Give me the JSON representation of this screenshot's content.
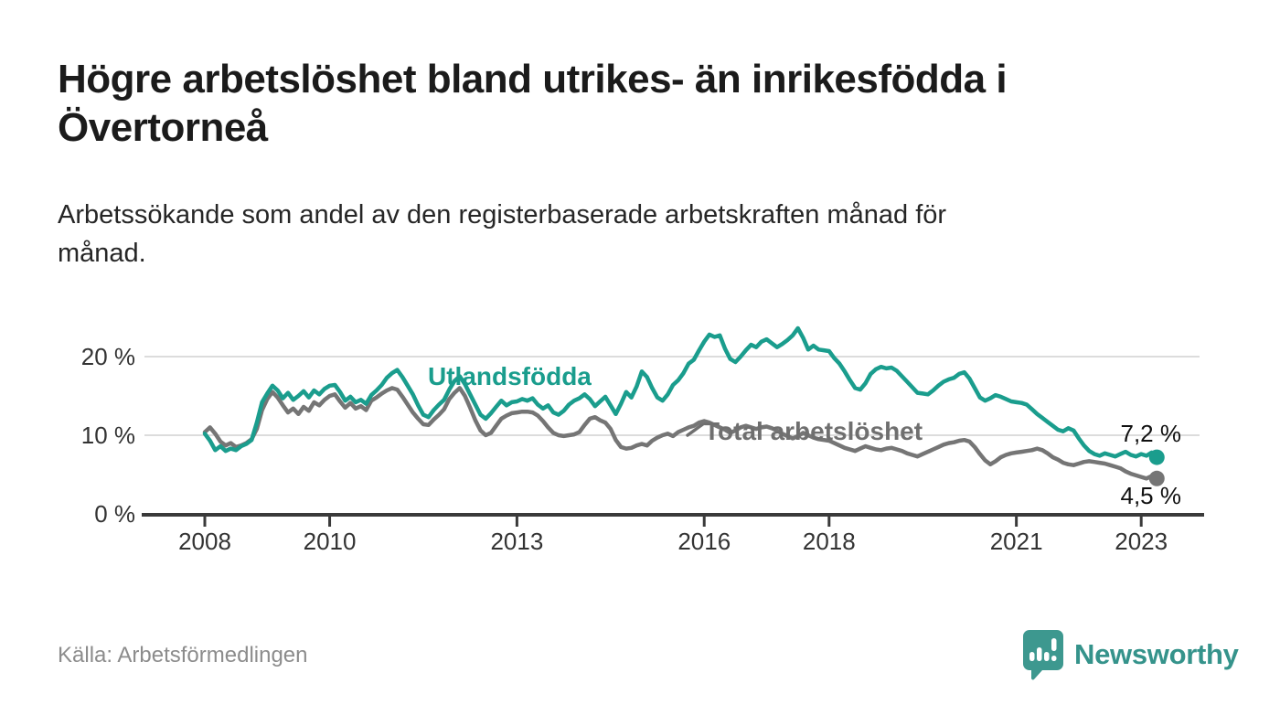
{
  "header": {
    "title_line1": "Högre arbetslöshet bland utrikes- än inrikesfödda i",
    "title_line2": "Övertorneå",
    "subtitle_line1": "Arbetssökande som andel av den registerbaserade arbetskraften månad för",
    "subtitle_line2": "månad."
  },
  "footer": {
    "source": "Källa: Arbetsförmedlingen",
    "brand": "Newsworthy"
  },
  "colors": {
    "accent_teal": "#1A9D8D",
    "line_gray": "#757575",
    "label_gray": "#6F6F6F",
    "axis": "#3A3A3A",
    "gridline": "#DCDCDC",
    "tick_text": "#333333",
    "title_text": "#1B1B1B",
    "source_text": "#8C8C8C",
    "logo_teal": "#3D988F"
  },
  "chart_data": {
    "type": "line",
    "title": "Högre arbetslöshet bland utrikes- än inrikesfödda i Övertorneå",
    "subtitle": "Arbetssökande som andel av den registerbaserade arbetskraften månad för månad.",
    "frequency": "monthly",
    "x_start": "2008-01",
    "x_end": "2023-04",
    "ylim": [
      0,
      25
    ],
    "grid": "horizontal-only",
    "yticks": [
      {
        "value": 0,
        "label": "0 %"
      },
      {
        "value": 10,
        "label": "10 %"
      },
      {
        "value": 20,
        "label": "20 %"
      }
    ],
    "xticks": [
      {
        "month_index": 0,
        "label": "2008"
      },
      {
        "month_index": 24,
        "label": "2010"
      },
      {
        "month_index": 60,
        "label": "2013"
      },
      {
        "month_index": 96,
        "label": "2016"
      },
      {
        "month_index": 120,
        "label": "2018"
      },
      {
        "month_index": 156,
        "label": "2021"
      },
      {
        "month_index": 180,
        "label": "2023"
      }
    ],
    "series": [
      {
        "name": "Utlandsfödda",
        "color": "#1A9D8D",
        "end_label": "7,2 %",
        "end_value": 7.2,
        "values": [
          10.2,
          9.3,
          8.1,
          8.6,
          8.0,
          8.3,
          8.1,
          8.6,
          8.9,
          9.4,
          11.6,
          14.2,
          15.3,
          16.3,
          15.7,
          14.7,
          15.4,
          14.5,
          15.0,
          15.6,
          14.8,
          15.7,
          15.2,
          15.9,
          16.3,
          16.4,
          15.5,
          14.4,
          14.9,
          14.2,
          14.5,
          14.0,
          15.1,
          15.7,
          16.4,
          17.3,
          17.9,
          18.3,
          17.4,
          16.3,
          15.2,
          13.8,
          12.6,
          12.3,
          13.2,
          13.9,
          14.5,
          15.8,
          16.9,
          17.5,
          16.5,
          15.2,
          13.9,
          12.6,
          12.1,
          12.8,
          13.6,
          14.4,
          13.8,
          14.2,
          14.3,
          14.6,
          14.4,
          14.7,
          13.9,
          13.4,
          13.8,
          12.9,
          12.6,
          13.1,
          13.9,
          14.4,
          14.7,
          15.2,
          14.6,
          13.7,
          14.3,
          14.9,
          13.8,
          12.7,
          14.0,
          15.5,
          14.8,
          16.2,
          18.1,
          17.4,
          16.0,
          14.8,
          14.4,
          15.2,
          16.4,
          17.0,
          17.9,
          19.1,
          19.6,
          20.8,
          21.9,
          22.8,
          22.5,
          22.7,
          21.0,
          19.7,
          19.3,
          20.0,
          20.8,
          21.5,
          21.2,
          21.9,
          22.2,
          21.7,
          21.2,
          21.6,
          22.1,
          22.7,
          23.6,
          22.4,
          20.9,
          21.4,
          20.9,
          20.8,
          20.7,
          19.8,
          19.1,
          18.1,
          17.0,
          16.0,
          15.8,
          16.6,
          17.8,
          18.4,
          18.7,
          18.5,
          18.6,
          18.2,
          17.5,
          16.8,
          16.1,
          15.4,
          15.3,
          15.2,
          15.7,
          16.3,
          16.8,
          17.1,
          17.3,
          17.8,
          18.0,
          17.2,
          16.0,
          14.8,
          14.4,
          14.7,
          15.1,
          14.9,
          14.6,
          14.3,
          14.2,
          14.1,
          13.9,
          13.3,
          12.7,
          12.2,
          11.7,
          11.2,
          10.7,
          10.5,
          10.9,
          10.6,
          9.6,
          8.7,
          8.0,
          7.6,
          7.4,
          7.7,
          7.5,
          7.3,
          7.6,
          7.9,
          7.5,
          7.3,
          7.6,
          7.4,
          7.8,
          7.2
        ]
      },
      {
        "name": "Total arbetslöshet",
        "color": "#757575",
        "end_label": "4,5 %",
        "end_value": 4.5,
        "values": [
          10.4,
          11.0,
          10.2,
          9.2,
          8.7,
          9.0,
          8.5,
          8.7,
          9.0,
          9.5,
          10.8,
          13.2,
          14.6,
          15.5,
          14.8,
          13.8,
          12.9,
          13.4,
          12.7,
          13.6,
          13.1,
          14.2,
          13.8,
          14.5,
          15.0,
          15.2,
          14.3,
          13.5,
          14.1,
          13.4,
          13.7,
          13.2,
          14.4,
          14.8,
          15.3,
          15.7,
          16.0,
          15.8,
          14.9,
          13.9,
          12.9,
          12.1,
          11.4,
          11.3,
          12.0,
          12.6,
          13.3,
          14.6,
          15.4,
          16.0,
          15.0,
          13.5,
          11.9,
          10.6,
          10.0,
          10.3,
          11.2,
          12.1,
          12.5,
          12.8,
          12.9,
          13.0,
          13.0,
          12.9,
          12.5,
          11.8,
          11.0,
          10.3,
          10.0,
          9.9,
          10.0,
          10.1,
          10.4,
          11.3,
          12.1,
          12.3,
          11.9,
          11.6,
          10.8,
          9.4,
          8.5,
          8.3,
          8.4,
          8.7,
          8.9,
          8.7,
          9.3,
          9.7,
          10.0,
          10.2,
          9.9,
          10.4,
          10.7,
          11.0,
          11.2,
          11.6,
          11.8,
          11.6,
          11.3,
          11.0,
          10.7,
          10.3,
          10.6,
          11.0,
          11.2,
          11.0,
          10.8,
          11.0,
          11.1,
          10.9,
          10.6,
          10.2,
          9.9,
          9.6,
          9.9,
          10.3,
          10.0,
          9.7,
          9.5,
          9.4,
          9.3,
          9.0,
          8.7,
          8.4,
          8.2,
          8.0,
          8.3,
          8.6,
          8.4,
          8.2,
          8.1,
          8.3,
          8.4,
          8.2,
          8.0,
          7.7,
          7.5,
          7.3,
          7.6,
          7.9,
          8.2,
          8.5,
          8.8,
          9.0,
          9.1,
          9.3,
          9.4,
          9.2,
          8.5,
          7.6,
          6.8,
          6.3,
          6.7,
          7.2,
          7.5,
          7.7,
          7.8,
          7.9,
          8.0,
          8.1,
          8.3,
          8.1,
          7.7,
          7.2,
          6.9,
          6.5,
          6.3,
          6.2,
          6.4,
          6.6,
          6.7,
          6.6,
          6.5,
          6.4,
          6.2,
          6.0,
          5.8,
          5.4,
          5.1,
          4.9,
          4.7,
          4.5,
          4.8,
          4.5
        ]
      }
    ]
  }
}
